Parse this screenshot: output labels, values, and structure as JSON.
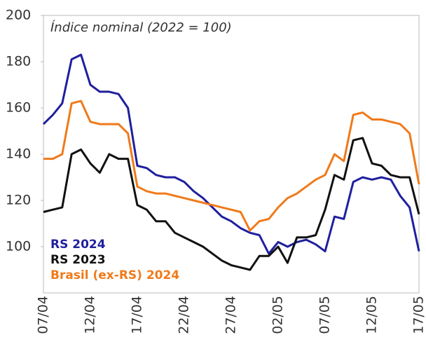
{
  "chart_data": {
    "type": "line",
    "title": "Índice nominal (2022 = 100)",
    "categories": [
      "07/04",
      null,
      null,
      null,
      null,
      "12/04",
      null,
      null,
      null,
      null,
      "17/04",
      null,
      null,
      null,
      null,
      "22/04",
      null,
      null,
      null,
      null,
      "27/04",
      null,
      null,
      null,
      null,
      "02/05",
      null,
      null,
      null,
      null,
      "07/05",
      null,
      null,
      null,
      null,
      "12/05",
      null,
      null,
      null,
      null,
      "17/05"
    ],
    "series": [
      {
        "name": "RS 2024",
        "color": "#1f1f9e",
        "values": [
          153,
          157,
          162,
          181,
          183,
          170,
          167,
          167,
          166,
          160,
          135,
          134,
          131,
          130,
          130,
          128,
          124,
          121,
          117,
          113,
          111,
          108,
          106,
          105,
          97,
          102,
          100,
          102,
          103,
          101,
          98,
          113,
          112,
          128,
          130,
          129,
          130,
          129,
          122,
          117,
          98
        ]
      },
      {
        "name": "RS 2023",
        "color": "#111111",
        "values": [
          115,
          116,
          117,
          140,
          142,
          136,
          132,
          140,
          138,
          138,
          118,
          116,
          111,
          111,
          106,
          104,
          102,
          100,
          97,
          94,
          92,
          91,
          90,
          96,
          96,
          100,
          93,
          104,
          104,
          105,
          116,
          131,
          129,
          146,
          147,
          136,
          135,
          131,
          130,
          130,
          114
        ]
      },
      {
        "name": "Brasil (ex-RS) 2024",
        "color": "#f07a1a",
        "values": [
          138,
          138,
          140,
          162,
          163,
          154,
          153,
          153,
          153,
          149,
          126,
          124,
          123,
          123,
          122,
          121,
          120,
          119,
          118,
          117,
          116,
          115,
          107,
          111,
          112,
          117,
          121,
          123,
          126,
          129,
          131,
          140,
          137,
          157,
          158,
          155,
          155,
          154,
          153,
          149,
          127
        ]
      }
    ],
    "ylim": [
      80,
      200
    ],
    "yticks": [
      100,
      120,
      140,
      160,
      180,
      200
    ]
  }
}
